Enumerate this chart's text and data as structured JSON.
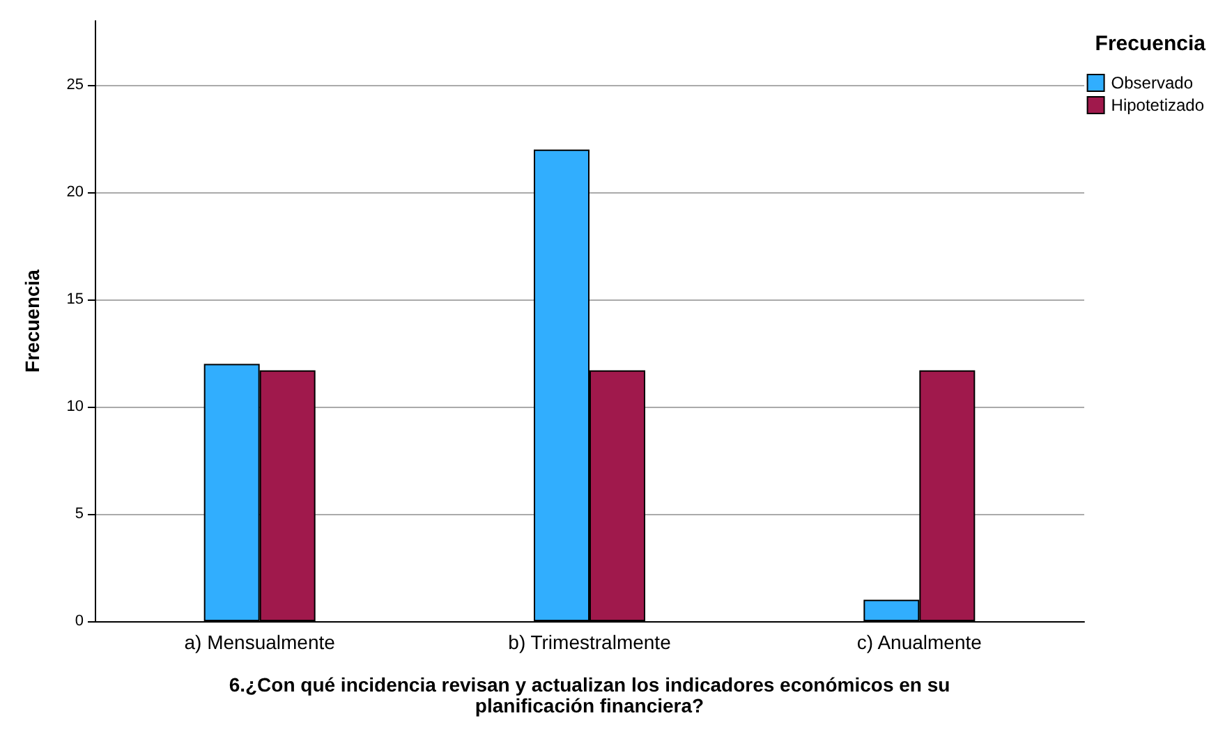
{
  "chart_data": {
    "type": "bar",
    "xlabel": "6.¿Con qué incidencia revisan y actualizan los indicadores económicos en su\nplanificación financiera?",
    "ylabel": "Frecuencia",
    "legend_title": "Frecuencia",
    "categories": [
      "a) Mensualmente",
      "b) Trimestralmente",
      "c) Anualmente"
    ],
    "series": [
      {
        "name": "Observado",
        "color": "#31aefe",
        "values": [
          12,
          22,
          1
        ]
      },
      {
        "name": "Hipotetizado",
        "color": "#a0194c",
        "values": [
          11.7,
          11.7,
          11.7
        ]
      }
    ],
    "ylim": [
      0,
      28
    ],
    "yticks": [
      0,
      5,
      10,
      15,
      20,
      25
    ],
    "grid": "y",
    "legend": "top right"
  }
}
